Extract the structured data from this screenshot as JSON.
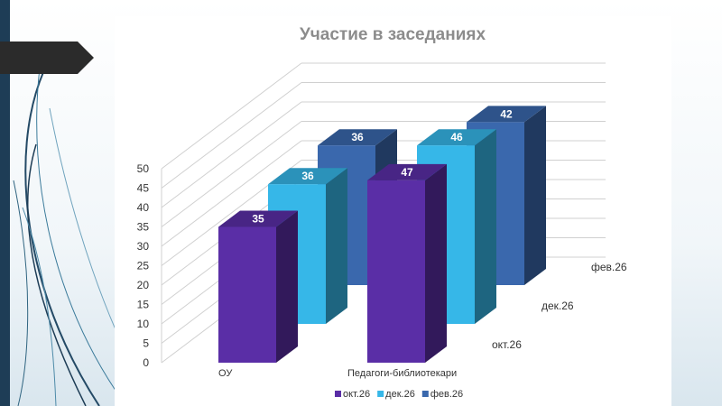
{
  "chart_data": {
    "type": "bar",
    "title": "Участие в заседаниях",
    "categories": [
      "ОУ",
      "Педагоги-библиотекари"
    ],
    "series": [
      {
        "name": "окт.26",
        "values": [
          35,
          47
        ],
        "color": "#5a2ea6"
      },
      {
        "name": "дек.26",
        "values": [
          36,
          46
        ],
        "color": "#36b7e8"
      },
      {
        "name": "фев.26",
        "values": [
          36,
          42
        ],
        "color": "#3a68ad"
      }
    ],
    "y_ticks": [
      "0",
      "5",
      "10",
      "15",
      "20",
      "25",
      "30",
      "35",
      "40",
      "45",
      "50"
    ],
    "ylim": [
      0,
      50
    ],
    "legend_position": "bottom",
    "grid": true,
    "style": "3d-column"
  },
  "colors": {
    "sidebar_dark": "#1e3d56",
    "arrow": "#2b2b2b"
  }
}
